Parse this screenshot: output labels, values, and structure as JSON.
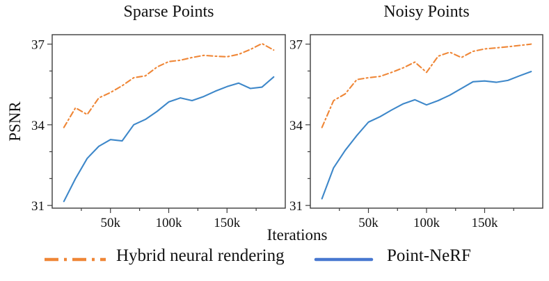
{
  "figure": {
    "ylabel": "PSNR",
    "xlabel": "Iterations",
    "background": "#ffffff",
    "spine_color": "#3c3c3c"
  },
  "legend": {
    "position": "bottom",
    "items": [
      {
        "label": "Hybrid neural rendering",
        "color": "#ef8636",
        "style": "dashdot"
      },
      {
        "label": "Point-NeRF",
        "color": "#4878d0",
        "style": "solid"
      }
    ]
  },
  "chart_data": [
    {
      "type": "line",
      "title": "Sparse Points",
      "xlabel": "Iterations",
      "ylabel": "PSNR",
      "x_unit": "thousand iterations",
      "xlim": [
        0,
        200
      ],
      "ylim": [
        30.9,
        37.35
      ],
      "grid": false,
      "xticks": {
        "major": [
          {
            "v": 50,
            "label": "50k"
          },
          {
            "v": 100,
            "label": "100k"
          },
          {
            "v": 150,
            "label": "150k"
          }
        ],
        "minor": [
          25,
          75,
          125,
          175
        ]
      },
      "yticks": {
        "major": [
          {
            "v": 31,
            "label": "31"
          },
          {
            "v": 34,
            "label": "34"
          },
          {
            "v": 37,
            "label": "37"
          }
        ],
        "minor": [
          32,
          33,
          35,
          36
        ]
      },
      "x": [
        10,
        20,
        30,
        40,
        50,
        60,
        70,
        80,
        90,
        100,
        110,
        120,
        130,
        140,
        150,
        160,
        170,
        180,
        190
      ],
      "series": [
        {
          "name": "Hybrid neural rendering",
          "color": "#ef8636",
          "style": "dashdot",
          "values": [
            33.9,
            34.63,
            34.38,
            35.0,
            35.2,
            35.45,
            35.75,
            35.82,
            36.15,
            36.35,
            36.4,
            36.5,
            36.58,
            36.55,
            36.53,
            36.62,
            36.8,
            37.02,
            36.78
          ]
        },
        {
          "name": "Point-NeRF",
          "color": "#3d87c9",
          "style": "solid",
          "values": [
            31.15,
            32.0,
            32.75,
            33.2,
            33.45,
            33.4,
            34.0,
            34.2,
            34.5,
            34.85,
            35.0,
            34.9,
            35.05,
            35.25,
            35.42,
            35.55,
            35.35,
            35.4,
            35.78
          ]
        }
      ]
    },
    {
      "type": "line",
      "title": "Noisy Points",
      "xlabel": "Iterations",
      "ylabel": "PSNR",
      "x_unit": "thousand iterations",
      "xlim": [
        0,
        200
      ],
      "ylim": [
        30.9,
        37.35
      ],
      "grid": false,
      "xticks": {
        "major": [
          {
            "v": 50,
            "label": "50k"
          },
          {
            "v": 100,
            "label": "100k"
          },
          {
            "v": 150,
            "label": "150k"
          }
        ],
        "minor": [
          25,
          75,
          125,
          175
        ]
      },
      "yticks": {
        "major": [
          {
            "v": 31,
            "label": "31"
          },
          {
            "v": 34,
            "label": "34"
          },
          {
            "v": 37,
            "label": "37"
          }
        ],
        "minor": [
          32,
          33,
          35,
          36
        ]
      },
      "x": [
        10,
        20,
        30,
        40,
        50,
        60,
        70,
        80,
        90,
        100,
        110,
        120,
        130,
        140,
        150,
        160,
        170,
        180,
        190
      ],
      "series": [
        {
          "name": "Hybrid neural rendering",
          "color": "#ef8636",
          "style": "dashdot",
          "values": [
            33.9,
            34.9,
            35.15,
            35.68,
            35.75,
            35.8,
            35.95,
            36.12,
            36.33,
            35.95,
            36.55,
            36.7,
            36.5,
            36.73,
            36.82,
            36.86,
            36.9,
            36.95,
            37.0
          ]
        },
        {
          "name": "Point-NeRF",
          "color": "#3d87c9",
          "style": "solid",
          "values": [
            31.25,
            32.4,
            33.05,
            33.6,
            34.1,
            34.3,
            34.55,
            34.78,
            34.93,
            34.74,
            34.9,
            35.1,
            35.35,
            35.6,
            35.63,
            35.58,
            35.65,
            35.82,
            35.98
          ]
        }
      ]
    }
  ]
}
